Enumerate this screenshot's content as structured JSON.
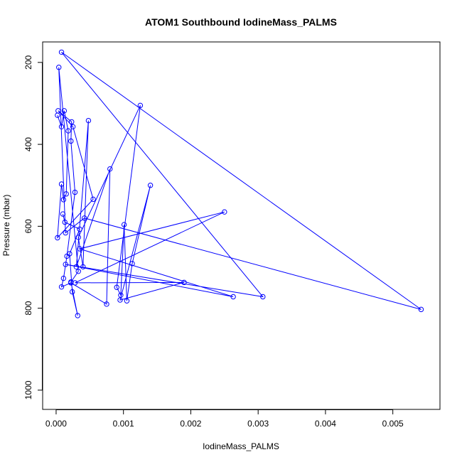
{
  "chart_data": {
    "type": "line",
    "title": "ATOM1 Southbound IodineMass_PALMS",
    "xlabel": "IodineMass_PALMS",
    "ylabel": "Pressure (mbar)",
    "xlim": [
      -0.0002,
      0.0057
    ],
    "ylim": [
      1047,
      150
    ],
    "y_reversed": true,
    "x_ticks": [
      0.0,
      0.001,
      0.002,
      0.003,
      0.004,
      0.005
    ],
    "x_tick_labels": [
      "0.000",
      "0.001",
      "0.002",
      "0.003",
      "0.004",
      "0.005"
    ],
    "y_ticks": [
      200,
      400,
      600,
      800,
      1000
    ],
    "y_tick_labels": [
      "200",
      "400",
      "600",
      "800",
      "1000"
    ],
    "grid": false,
    "series": [
      {
        "color": "#0000ff",
        "marker": "open-circle",
        "points": [
          [
            2e-05,
            329
          ],
          [
            8e-05,
            357
          ],
          [
            0.00012,
            318
          ],
          [
            0.00018,
            367
          ],
          [
            0.00015,
            521
          ],
          [
            0.00011,
            535
          ],
          [
            8e-05,
            497
          ],
          [
            2e-05,
            628
          ],
          [
            0.00055,
            534
          ],
          [
            0.00025,
            357
          ],
          [
            3e-05,
            318
          ],
          [
            0.00023,
            345
          ],
          [
            0.00022,
            392
          ],
          [
            0.00028,
            517
          ],
          [
            0.00016,
            673
          ],
          [
            0.00011,
            727
          ],
          [
            8e-05,
            748
          ],
          [
            0.00022,
            738
          ],
          [
            0.00075,
            790
          ],
          [
            0.0008,
            460
          ],
          [
            0.0003,
            699
          ],
          [
            0.00048,
            342
          ],
          [
            0.0004,
            699
          ],
          [
            0.00033,
            627
          ],
          [
            0.00125,
            305
          ],
          [
            0.0009,
            749
          ],
          [
            0.00096,
            768
          ],
          [
            0.00101,
            596
          ],
          [
            0.00105,
            782
          ],
          [
            0.00113,
            691
          ],
          [
            0.0014,
            500
          ],
          [
            0.00095,
            780
          ],
          [
            0.0019,
            737
          ],
          [
            0.00028,
            738
          ],
          [
            0.0025,
            565
          ],
          [
            0.00035,
            655
          ],
          [
            0.00263,
            772
          ],
          [
            0.00014,
            693
          ],
          [
            0.00307,
            772
          ],
          [
            8e-05,
            175
          ],
          [
            0.00542,
            803
          ],
          [
            0.00042,
            580
          ],
          [
            0.00014,
            616
          ],
          [
            4e-05,
            212
          ],
          [
            0.00033,
            710
          ],
          [
            0.00022,
            736
          ],
          [
            0.00032,
            818
          ],
          [
            0.00024,
            760
          ],
          [
            0.0002,
            667
          ],
          [
            0.00035,
            607
          ],
          [
            0.00013,
            590
          ],
          [
            0.0001,
            570
          ]
        ]
      }
    ]
  }
}
